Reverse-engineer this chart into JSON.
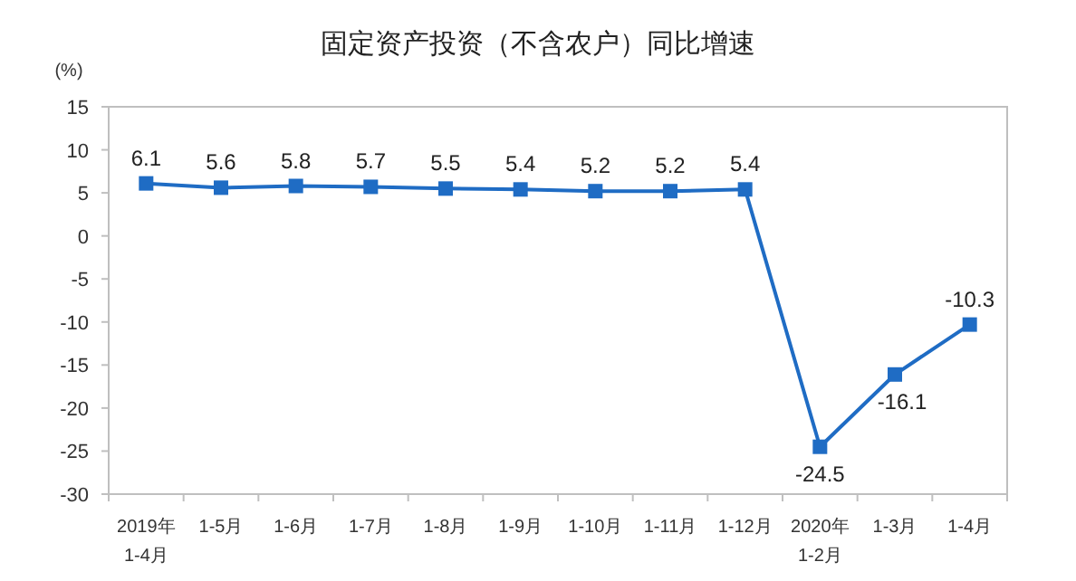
{
  "chart_data": {
    "type": "line",
    "title": "固定资产投资（不含农户）同比增速",
    "ylabel": "(%)",
    "categories": [
      "2019年\n1-4月",
      "1-5月",
      "1-6月",
      "1-7月",
      "1-8月",
      "1-9月",
      "1-10月",
      "1-11月",
      "1-12月",
      "2020年\n1-2月",
      "1-3月",
      "1-4月"
    ],
    "series": [
      {
        "color": "#1f6cc4",
        "values": [
          6.1,
          5.6,
          5.8,
          5.7,
          5.5,
          5.4,
          5.2,
          5.2,
          5.4,
          -24.5,
          -16.1,
          -10.3
        ]
      }
    ],
    "ylim": [
      -30,
      15
    ],
    "yticks": [
      -30,
      -25,
      -20,
      -15,
      -10,
      -5,
      0,
      5,
      10,
      15
    ],
    "data_labels": true,
    "marker": "square",
    "line_style": "solid",
    "grid": false
  }
}
